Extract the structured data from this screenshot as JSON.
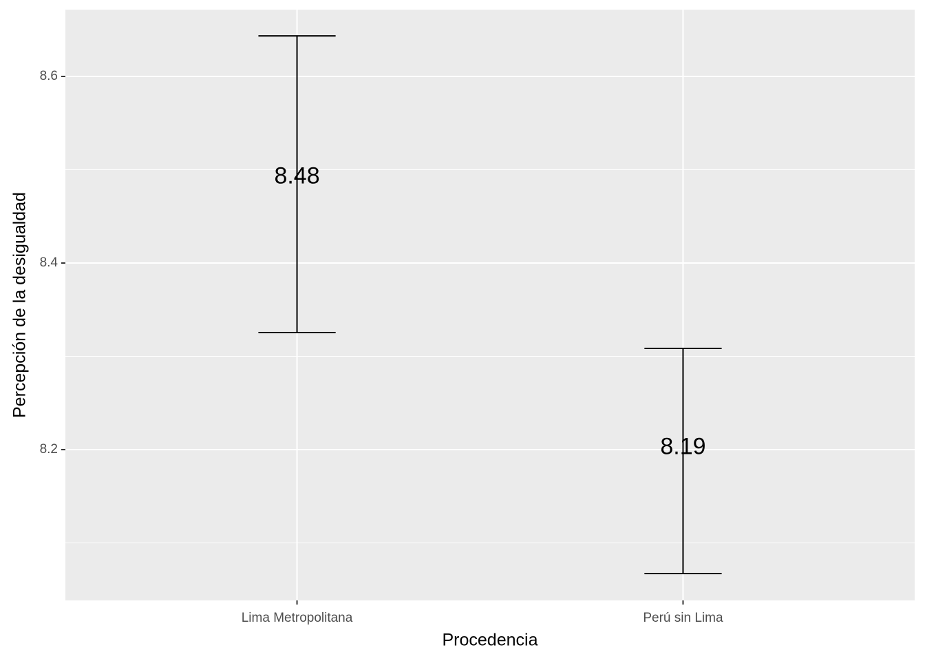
{
  "chart_data": {
    "type": "errorbar",
    "x_label": "Procedencia",
    "y_label": "Percepción de la desigualdad",
    "categories": [
      "Lima Metropolitana",
      "Perú sin Lima"
    ],
    "values": [
      8.48,
      8.19
    ],
    "ymin": [
      8.3255,
      8.0672
    ],
    "ymax": [
      8.6435,
      8.3085
    ],
    "color": "#000000",
    "ylim": [
      8.0384,
      8.6716
    ],
    "yticks": [
      8.2,
      8.4,
      8.6
    ],
    "y_minor_ticks": [
      8.1,
      8.3,
      8.5
    ],
    "grid": true
  }
}
